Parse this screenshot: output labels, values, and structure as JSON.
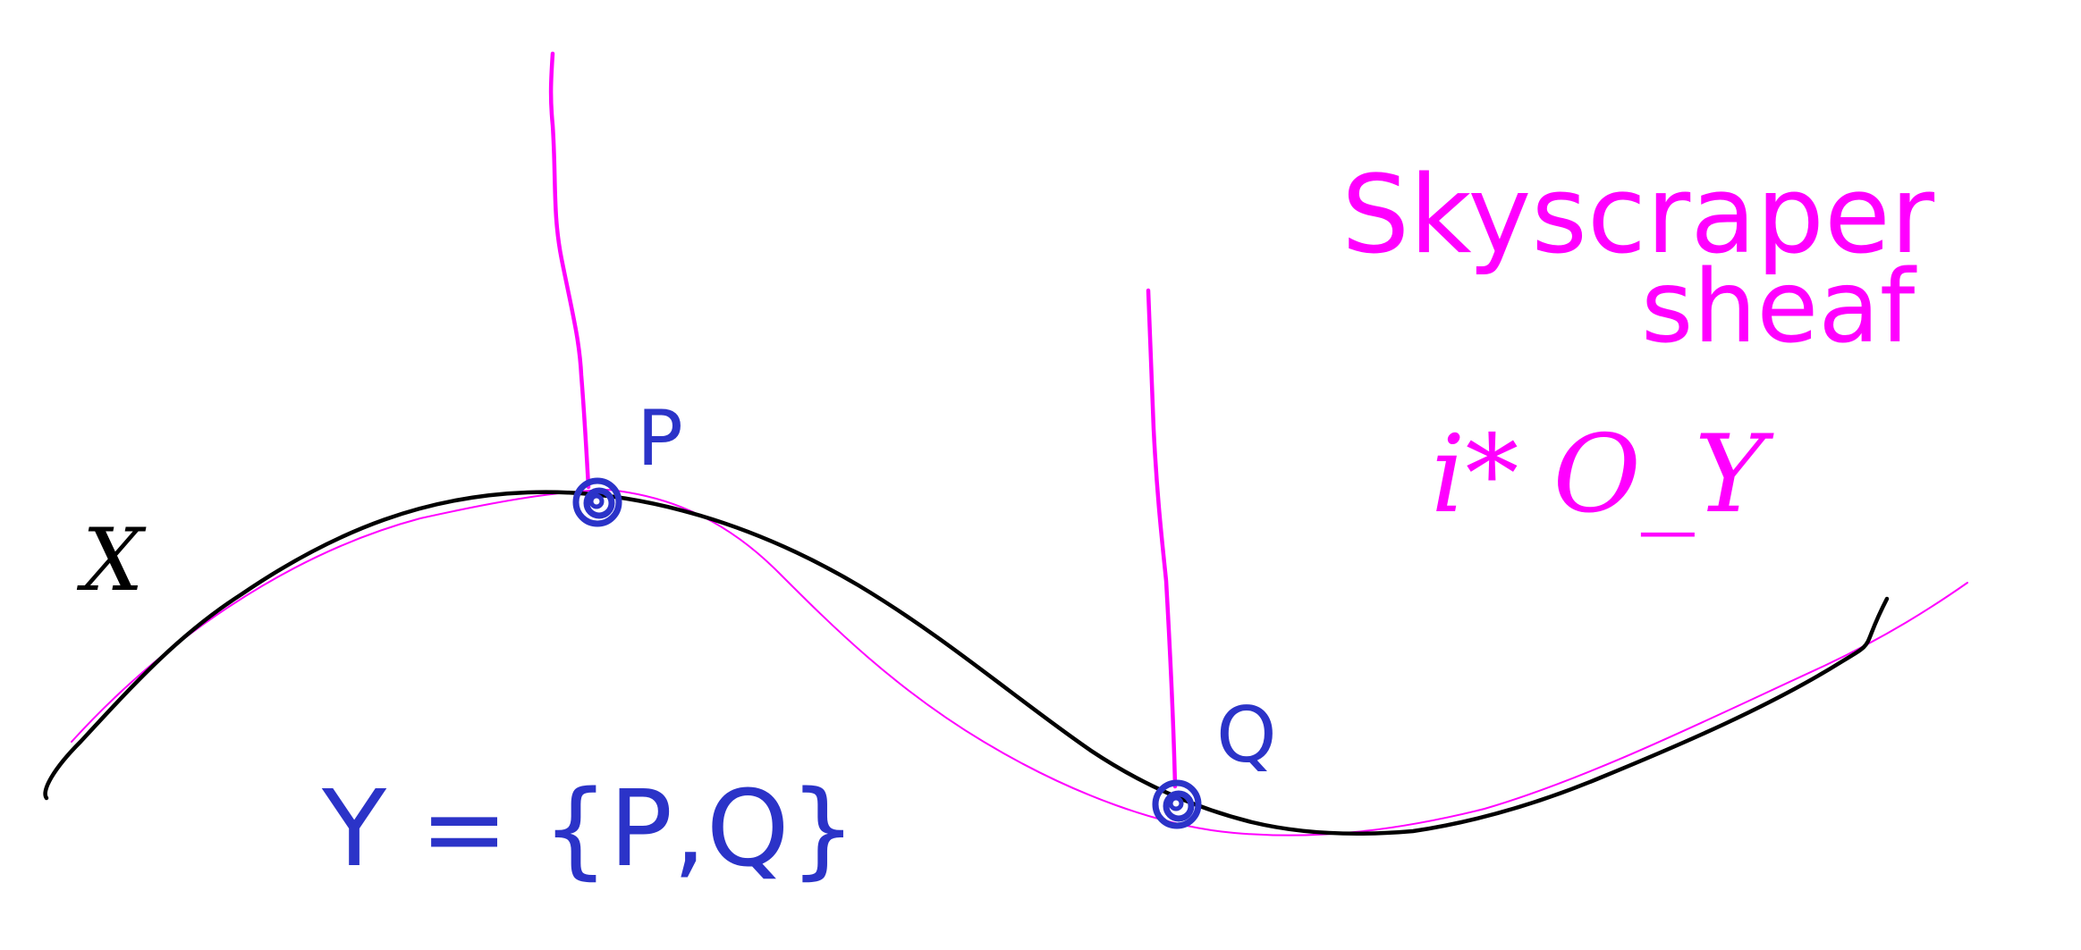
{
  "labels": {
    "curve": "X",
    "point_p": "P",
    "point_q": "Q",
    "definition": "Y = {P,Q}",
    "title_line1": "Skyscraper",
    "title_line2": "sheaf",
    "formula": "i* O_Y"
  },
  "colors": {
    "curve": "#000000",
    "sheaf": "#ff00ff",
    "points": "#2b33c8",
    "background": "#ffffff"
  }
}
